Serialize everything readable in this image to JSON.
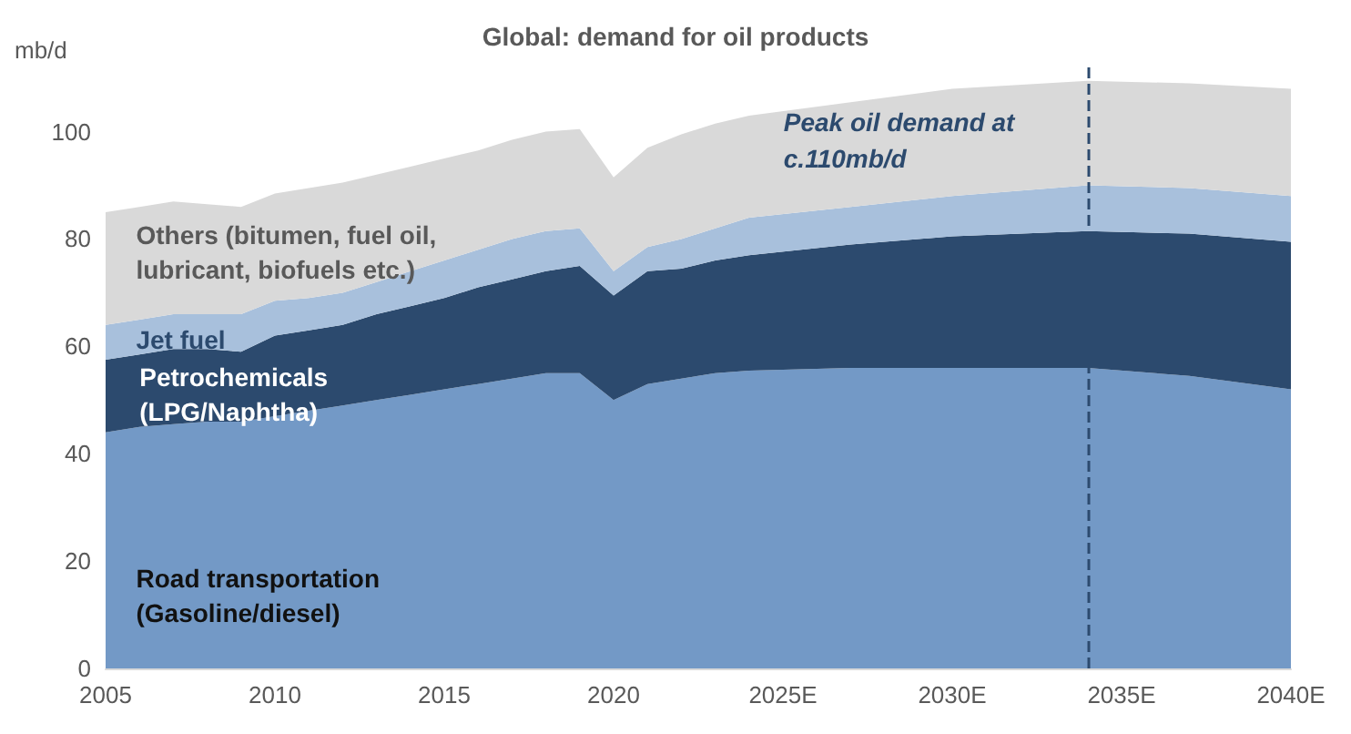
{
  "chart_data": {
    "type": "area",
    "title": "Global: demand for oil products",
    "ylabel": "mb/d",
    "stacked": true,
    "x": [
      2005,
      2006,
      2007,
      2008,
      2009,
      2010,
      2011,
      2012,
      2013,
      2014,
      2015,
      2016,
      2017,
      2018,
      2019,
      2020,
      2021,
      2022,
      2023,
      2024,
      2027,
      2030,
      2034,
      2037,
      2040
    ],
    "xlim": [
      2005,
      2040
    ],
    "xticks": [
      2005,
      2010,
      2015,
      2020,
      {
        "value": 2025,
        "label": "2025E"
      },
      {
        "value": 2030,
        "label": "2030E"
      },
      {
        "value": 2035,
        "label": "2035E"
      },
      {
        "value": 2040,
        "label": "2040E"
      }
    ],
    "ylim": [
      0,
      113
    ],
    "yticks": [
      0,
      20,
      40,
      60,
      80,
      100
    ],
    "series": [
      {
        "name": "Road transportation\n(Gasoline/diesel)",
        "color": "#7399c6",
        "values": [
          44,
          45,
          45.5,
          46,
          46,
          47,
          48,
          49,
          50,
          51,
          52,
          53,
          54,
          55,
          55,
          50,
          53,
          54,
          55,
          55.5,
          56,
          56,
          56,
          54.5,
          52
        ]
      },
      {
        "name": "Petrochemicals\n(LPG/Naphtha)",
        "color": "#2c4a6e",
        "values": [
          13.5,
          13.5,
          14,
          13.5,
          13,
          15,
          15,
          15,
          16,
          16.5,
          17,
          18,
          18.5,
          19,
          20,
          19.5,
          21,
          20.5,
          21,
          21.5,
          23,
          24.5,
          25.5,
          26.5,
          27.5
        ]
      },
      {
        "name": "Jet fuel",
        "color": "#a8c0dc",
        "values": [
          6.5,
          6.5,
          6.5,
          6.5,
          7,
          6.5,
          6,
          6,
          6,
          6.5,
          7,
          7,
          7.5,
          7.5,
          7,
          4.5,
          4.5,
          5.5,
          6,
          7,
          7,
          7.5,
          8.5,
          8.5,
          8.5
        ]
      },
      {
        "name": "Others (bitumen, fuel oil,\nlubricant, biofuels etc.)",
        "color": "#d9d9d9",
        "values": [
          21,
          21,
          21,
          20.5,
          20,
          20,
          20.5,
          20.5,
          20,
          19.5,
          19,
          18.5,
          18.5,
          18.5,
          18.5,
          17.5,
          18.5,
          19.5,
          19.5,
          19,
          19.5,
          20,
          19.5,
          19.5,
          20
        ]
      }
    ],
    "ref_lines": [
      {
        "axis": "x",
        "value": 2034,
        "label": "Peak oil demand at\nc.110mb/d",
        "color": "#2c4a6e",
        "line_style": "dashed"
      }
    ]
  }
}
